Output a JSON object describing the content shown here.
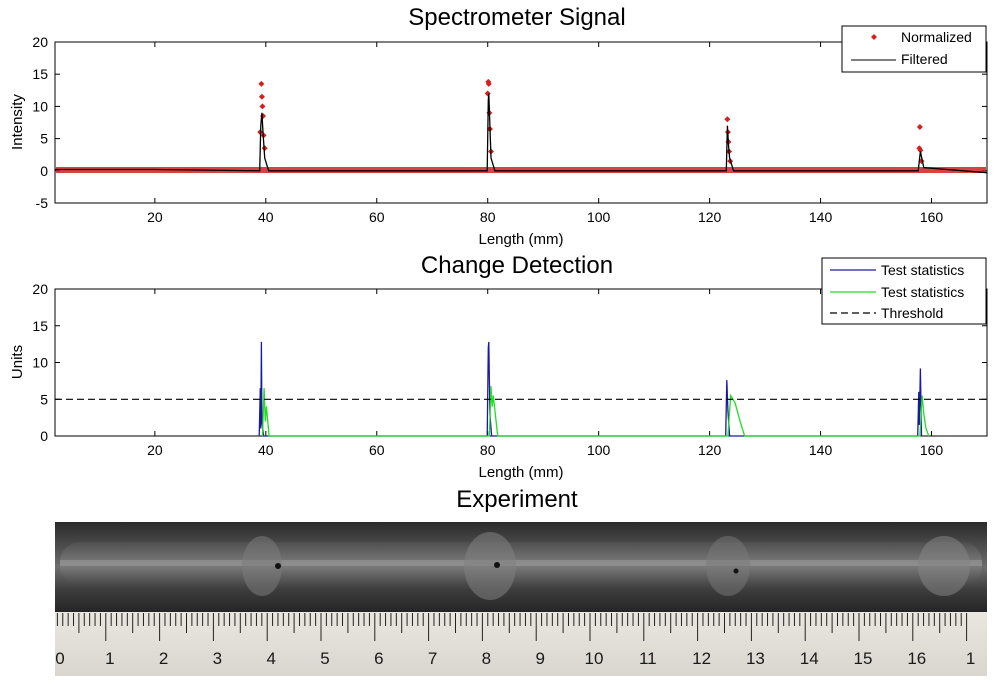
{
  "figure": {
    "experiment_title": "Experiment"
  },
  "chart_data": [
    {
      "type": "line",
      "title": "Spectrometer Signal",
      "xlabel": "Length (mm)",
      "ylabel": "Intensity",
      "xlim": [
        2,
        170
      ],
      "ylim": [
        -5,
        20
      ],
      "x_ticks": [
        20,
        40,
        60,
        80,
        100,
        120,
        140,
        160
      ],
      "y_ticks": [
        -5,
        0,
        5,
        10,
        15,
        20
      ],
      "grid": false,
      "legend_position": "top-right",
      "series": [
        {
          "name": "Normalized",
          "style": "markers",
          "color": "#d42020",
          "x": [
            39.0,
            39.2,
            39.3,
            39.4,
            39.5,
            39.6,
            39.8,
            80.0,
            80.1,
            80.2,
            80.3,
            80.4,
            80.6,
            123.2,
            123.3,
            123.4,
            123.5,
            123.7,
            157.8,
            157.9,
            158.0,
            158.2
          ],
          "y": [
            6.0,
            13.5,
            11.5,
            10.0,
            8.5,
            5.5,
            3.5,
            12.0,
            13.8,
            13.5,
            9.0,
            6.5,
            3.0,
            8.0,
            6.0,
            4.5,
            3.0,
            1.5,
            3.5,
            6.8,
            3.2,
            1.5
          ]
        },
        {
          "name": "Filtered",
          "style": "line",
          "color": "#000000",
          "x": [
            2,
            20,
            38.9,
            39.1,
            39.3,
            39.5,
            39.8,
            40.5,
            79.9,
            80.1,
            80.2,
            80.4,
            80.6,
            81.3,
            123.0,
            123.2,
            123.4,
            123.6,
            124.3,
            157.6,
            157.8,
            158.0,
            158.6,
            170
          ],
          "y": [
            0.2,
            0.2,
            0.0,
            7.0,
            9.0,
            6.0,
            2.0,
            0.0,
            0.0,
            11.0,
            12.0,
            7.0,
            2.0,
            0.0,
            0.0,
            7.0,
            4.0,
            2.0,
            0.0,
            0.0,
            1.5,
            3.0,
            0.5,
            -0.3
          ]
        }
      ]
    },
    {
      "type": "line",
      "title": "Change Detection",
      "xlabel": "Length (mm)",
      "ylabel": "Units",
      "xlim": [
        2,
        170
      ],
      "ylim": [
        0,
        20
      ],
      "x_ticks": [
        20,
        40,
        60,
        80,
        100,
        120,
        140,
        160
      ],
      "y_ticks": [
        0,
        5,
        10,
        15,
        20
      ],
      "grid": false,
      "legend_position": "top-right",
      "series": [
        {
          "name": "Test statistics",
          "color": "#1a1aa0",
          "x": [
            38.8,
            39.0,
            39.1,
            39.2,
            39.3,
            39.6,
            79.9,
            80.1,
            80.2,
            80.4,
            80.7,
            122.9,
            123.1,
            123.3,
            123.6,
            157.5,
            157.7,
            157.8,
            158.0,
            158.2
          ],
          "y": [
            0,
            6.5,
            1.0,
            12.8,
            2.0,
            0,
            0,
            12.0,
            12.8,
            3.0,
            0,
            0,
            7.6,
            3.5,
            0,
            0,
            6.0,
            1.5,
            9.2,
            0
          ]
        },
        {
          "name": "Test statistics",
          "color": "#22dd22",
          "x": [
            39.4,
            39.7,
            39.9,
            40.1,
            40.6,
            80.3,
            80.6,
            80.8,
            81.0,
            81.8,
            123.3,
            123.8,
            124.6,
            125.5,
            126.3,
            157.9,
            158.3,
            158.6,
            159.0,
            159.5
          ],
          "y": [
            0,
            6.5,
            2.0,
            4.0,
            0,
            0,
            6.8,
            4.0,
            5.5,
            0,
            0,
            5.5,
            4.5,
            2.0,
            0,
            0,
            5.5,
            3.0,
            1.0,
            0
          ]
        },
        {
          "name": "Threshold",
          "color": "#000000",
          "dashed": true,
          "x": [
            2,
            170
          ],
          "y": [
            5,
            5
          ]
        }
      ]
    }
  ],
  "ruler": {
    "labels": [
      "0",
      "1",
      "2",
      "3",
      "4",
      "5",
      "6",
      "7",
      "8",
      "9",
      "10",
      "11",
      "12",
      "13",
      "14",
      "15",
      "16",
      "1"
    ]
  }
}
